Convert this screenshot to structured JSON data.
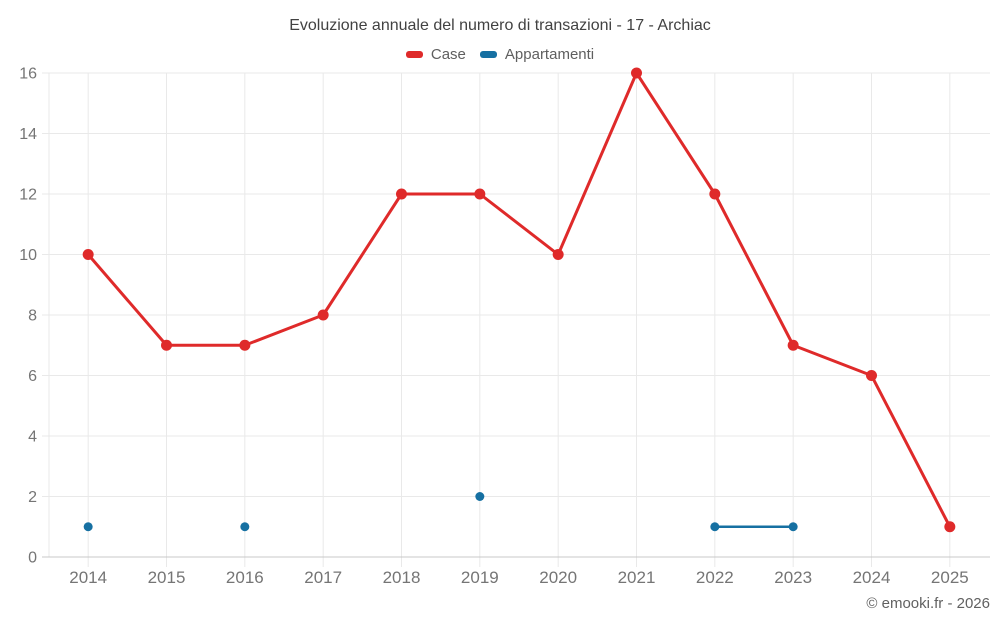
{
  "title": "Evoluzione annuale del numero di transazioni - 17 - Archiac",
  "copyright": "© emooki.fr - 2026",
  "colors": {
    "case_red": "#df2a2a",
    "appartamenti_blue": "#1670a2",
    "gridline": "#e9e9e9",
    "axis_line": "#c8c8c8",
    "axis_label": "#757575",
    "title_text": "#424242"
  },
  "chart_data": {
    "type": "line",
    "categories": [
      "2014",
      "2015",
      "2016",
      "2017",
      "2018",
      "2019",
      "2020",
      "2021",
      "2022",
      "2023",
      "2024",
      "2025"
    ],
    "series": [
      {
        "name": "Case",
        "color": "#df2a2a",
        "values": [
          10,
          7,
          7,
          8,
          12,
          12,
          10,
          16,
          12,
          7,
          6,
          1
        ],
        "marker_radius": 5.5,
        "line_width": 3
      },
      {
        "name": "Appartamenti",
        "color": "#1670a2",
        "values": [
          1,
          null,
          1,
          null,
          null,
          2,
          null,
          null,
          1,
          1,
          null,
          null
        ],
        "marker_radius": 4.5,
        "line_width": 2.5
      }
    ],
    "ylim": [
      0,
      16
    ],
    "y_ticks": [
      0,
      2,
      4,
      6,
      8,
      10,
      12,
      14,
      16
    ],
    "grid": true,
    "legend_position": "top",
    "xlabel": "",
    "ylabel": ""
  }
}
